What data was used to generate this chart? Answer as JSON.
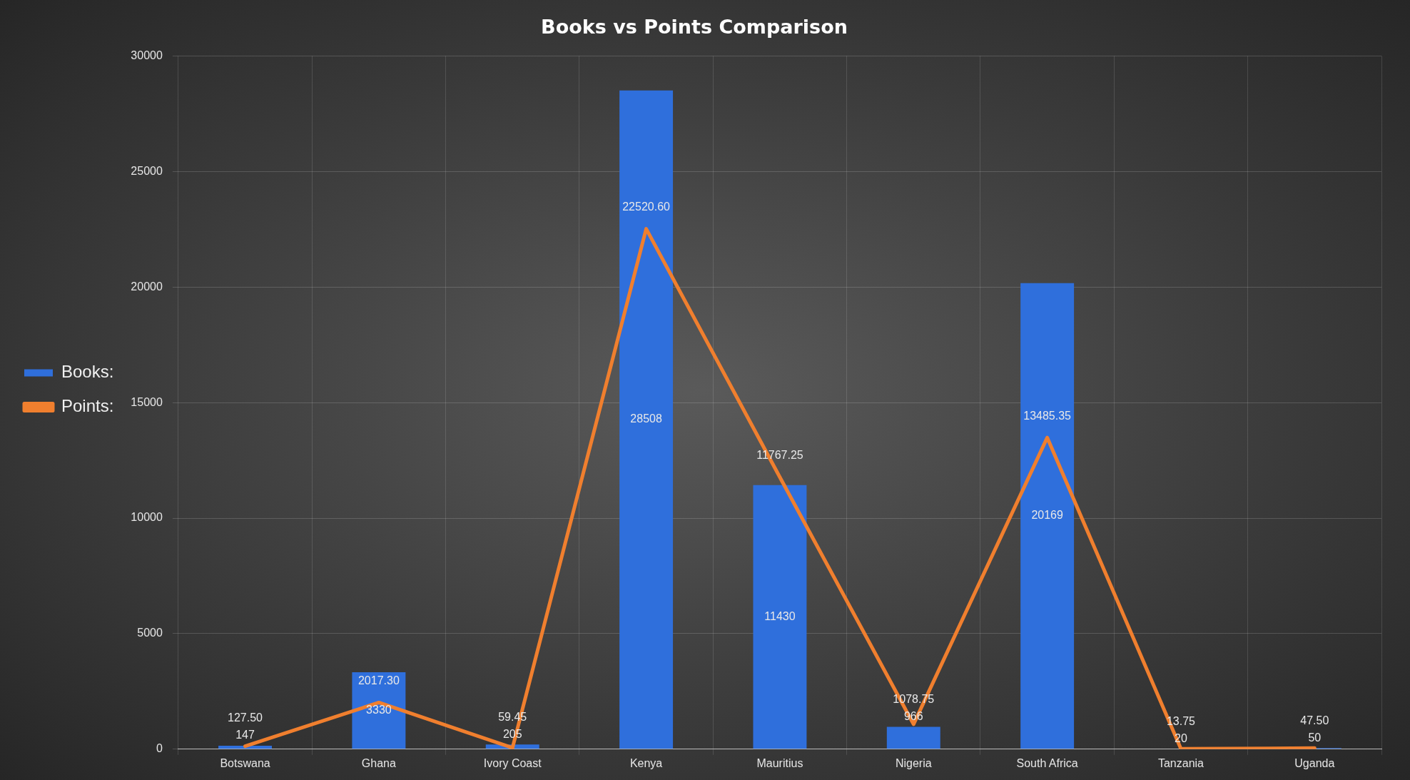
{
  "chart_data": {
    "type": "bar",
    "title": "Books vs Points Comparison",
    "categories": [
      "Botswana",
      "Ghana",
      "Ivory Coast",
      "Kenya",
      "Mauritius",
      "Nigeria",
      "South Africa",
      "Tanzania",
      "Uganda"
    ],
    "series": [
      {
        "name": "Books:",
        "type": "bar",
        "color": "#2f6fdc",
        "values": [
          147,
          3330,
          205,
          28508,
          11430,
          966,
          20169,
          20,
          50
        ],
        "value_labels": [
          "147",
          "3330",
          "205",
          "28508",
          "11430",
          "966",
          "20169",
          "20",
          "50"
        ]
      },
      {
        "name": "Points:",
        "type": "line",
        "color": "#f07f2e",
        "values": [
          127.5,
          2017.3,
          59.45,
          22520.6,
          11767.25,
          1078.75,
          13485.35,
          13.75,
          47.5
        ],
        "value_labels": [
          "127.50",
          "2017.30",
          "59.45",
          "22520.60",
          "11767.25",
          "1078.75",
          "13485.35",
          "13.75",
          "47.50"
        ]
      }
    ],
    "ylim": [
      0,
      30000
    ],
    "yticks": [
      0,
      5000,
      10000,
      15000,
      20000,
      25000,
      30000
    ],
    "grid": true,
    "legend": "left",
    "marker": "none",
    "line_style": "solid"
  }
}
